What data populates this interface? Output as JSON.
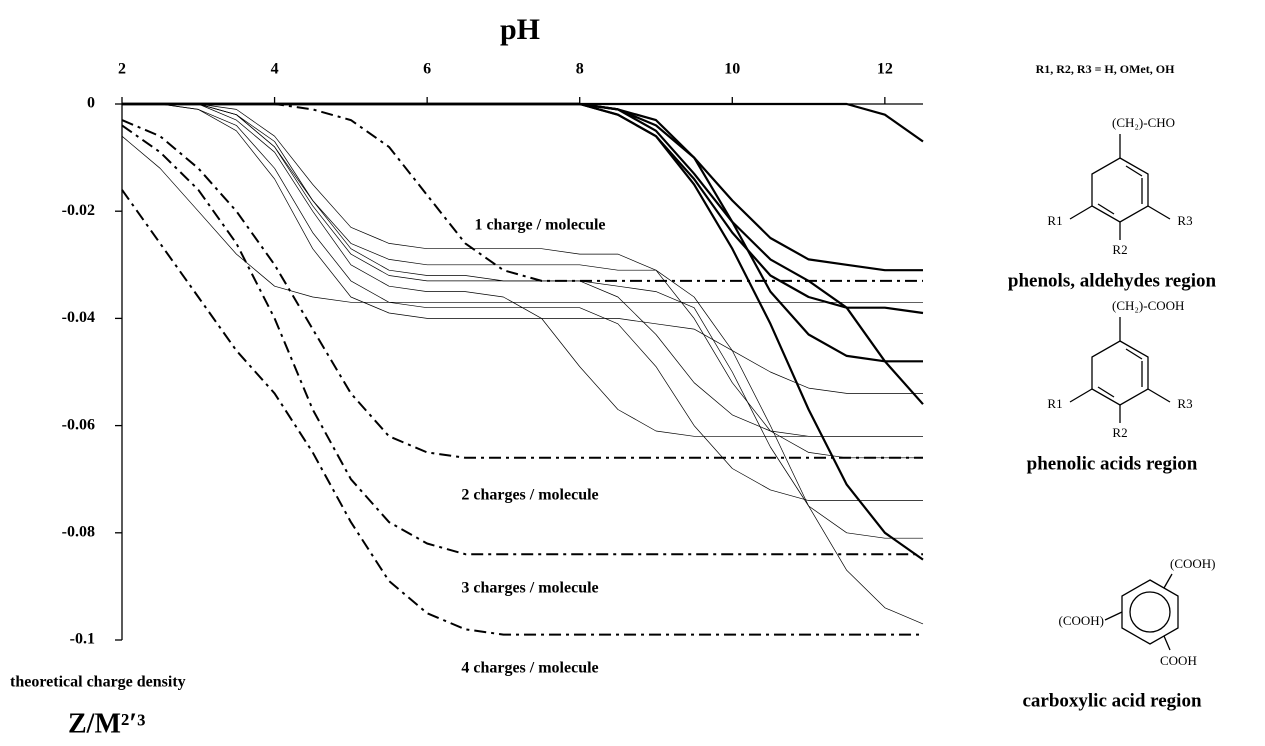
{
  "chart_data": {
    "type": "line",
    "title": "pH",
    "y_label": "theoretical charge density",
    "y_unit": "Z/M²′³",
    "annotations": [
      "1 charge / molecule",
      "2 charges / molecule",
      "3 charges / molecule",
      "4 charges / molecule"
    ],
    "substituent_note": "R1, R2, R3 = H, OMet, OH",
    "structures": [
      {
        "group": "(CH₂)-CHO",
        "labels": [
          "R1",
          "R2",
          "R3"
        ],
        "caption": "phenols, aldehydes region"
      },
      {
        "group": "(CH₂)-COOH",
        "labels": [
          "R1",
          "R2",
          "R3"
        ],
        "caption": "phenolic acids region"
      },
      {
        "labels": [
          "(COOH)",
          "(COOH)",
          "COOH"
        ],
        "caption": "carboxylic acid region"
      }
    ],
    "xlim": [
      2,
      12.5
    ],
    "xticks": [
      2,
      4,
      6,
      8,
      10,
      12
    ],
    "ylim": [
      -0.1,
      0
    ],
    "yticks": [
      0,
      -0.02,
      -0.04,
      -0.06,
      -0.08,
      -0.1
    ],
    "x": [
      2,
      2.5,
      3,
      3.5,
      4,
      4.5,
      5,
      5.5,
      6,
      6.5,
      7,
      7.5,
      8,
      8.5,
      9,
      9.5,
      10,
      10.5,
      11,
      11.5,
      12,
      12.5
    ],
    "series": [
      {
        "style": "thick",
        "color": "#000000",
        "values": [
          0,
          0,
          0,
          0,
          0,
          0,
          0,
          0,
          0,
          0,
          0,
          0,
          0,
          -0.001,
          -0.004,
          -0.01,
          -0.018,
          -0.025,
          -0.029,
          -0.03,
          -0.031,
          -0.031
        ]
      },
      {
        "style": "thick",
        "color": "#000000",
        "values": [
          0,
          0,
          0,
          0,
          0,
          0,
          0,
          0,
          0,
          0,
          0,
          0,
          0,
          -0.002,
          -0.006,
          -0.014,
          -0.024,
          -0.032,
          -0.036,
          -0.038,
          -0.038,
          -0.039
        ]
      },
      {
        "style": "thick",
        "color": "#000000",
        "values": [
          0,
          0,
          0,
          0,
          0,
          0,
          0,
          0,
          0,
          0,
          0,
          0,
          0,
          -0.001,
          -0.003,
          -0.01,
          -0.022,
          -0.035,
          -0.043,
          -0.047,
          -0.048,
          -0.048
        ]
      },
      {
        "style": "thick",
        "color": "#000000",
        "values": [
          0,
          0,
          0,
          0,
          0,
          0,
          0,
          0,
          0,
          0,
          0,
          0,
          0,
          -0.001,
          -0.005,
          -0.013,
          -0.022,
          -0.029,
          -0.033,
          -0.038,
          -0.048,
          -0.056
        ]
      },
      {
        "style": "thick",
        "color": "#000000",
        "values": [
          0,
          0,
          0,
          0,
          0,
          0,
          0,
          0,
          0,
          0,
          0,
          0,
          0,
          -0.002,
          -0.006,
          -0.015,
          -0.027,
          -0.041,
          -0.057,
          -0.071,
          -0.08,
          -0.085
        ]
      },
      {
        "style": "thick",
        "color": "#000000",
        "values": [
          0,
          0,
          0,
          0,
          0,
          0,
          0,
          0,
          0,
          0,
          0,
          0,
          0,
          0,
          0,
          0,
          0,
          0,
          0,
          0,
          -0.002,
          -0.007
        ]
      },
      {
        "style": "thin",
        "color": "#000000",
        "values": [
          -0.006,
          -0.012,
          -0.02,
          -0.028,
          -0.034,
          -0.036,
          -0.037,
          -0.037,
          -0.037,
          -0.037,
          -0.037,
          -0.037,
          -0.037,
          -0.037,
          -0.037,
          -0.037,
          -0.037,
          -0.037,
          -0.037,
          -0.037,
          -0.037,
          -0.037
        ]
      },
      {
        "style": "thin",
        "color": "#000000",
        "values": [
          0,
          0,
          0,
          -0.002,
          -0.007,
          -0.018,
          -0.027,
          -0.031,
          -0.032,
          -0.032,
          -0.033,
          -0.033,
          -0.033,
          -0.036,
          -0.043,
          -0.052,
          -0.058,
          -0.061,
          -0.062,
          -0.062,
          -0.062,
          -0.062
        ]
      },
      {
        "style": "thin",
        "color": "#000000",
        "values": [
          0,
          0,
          0,
          -0.003,
          -0.009,
          -0.02,
          -0.03,
          -0.034,
          -0.035,
          -0.035,
          -0.036,
          -0.04,
          -0.049,
          -0.057,
          -0.061,
          -0.062,
          -0.062,
          -0.062,
          -0.062,
          -0.062,
          -0.062,
          -0.062
        ]
      },
      {
        "style": "thin",
        "color": "#000000",
        "values": [
          0,
          0,
          0,
          -0.001,
          -0.006,
          -0.015,
          -0.023,
          -0.026,
          -0.027,
          -0.027,
          -0.027,
          -0.027,
          -0.028,
          -0.028,
          -0.031,
          -0.04,
          -0.052,
          -0.061,
          -0.065,
          -0.066,
          -0.066,
          -0.066
        ]
      },
      {
        "style": "thin",
        "color": "#000000",
        "values": [
          0,
          0,
          0,
          -0.002,
          -0.008,
          -0.018,
          -0.026,
          -0.029,
          -0.03,
          -0.03,
          -0.03,
          -0.03,
          -0.03,
          -0.031,
          -0.031,
          -0.036,
          -0.046,
          -0.06,
          -0.075,
          -0.087,
          -0.094,
          -0.097
        ]
      },
      {
        "style": "thin",
        "color": "#000000",
        "values": [
          0,
          0,
          0,
          -0.002,
          -0.008,
          -0.019,
          -0.028,
          -0.032,
          -0.033,
          -0.033,
          -0.033,
          -0.033,
          -0.033,
          -0.034,
          -0.035,
          -0.038,
          -0.05,
          -0.064,
          -0.075,
          -0.08,
          -0.081,
          -0.081
        ]
      },
      {
        "style": "thin",
        "color": "#000000",
        "values": [
          0,
          0,
          -0.001,
          -0.004,
          -0.012,
          -0.024,
          -0.033,
          -0.037,
          -0.038,
          -0.038,
          -0.038,
          -0.038,
          -0.038,
          -0.041,
          -0.049,
          -0.06,
          -0.068,
          -0.072,
          -0.074,
          -0.074,
          -0.074,
          -0.074
        ]
      },
      {
        "style": "thin",
        "color": "#000000",
        "values": [
          0,
          0,
          -0.001,
          -0.005,
          -0.014,
          -0.027,
          -0.036,
          -0.039,
          -0.04,
          -0.04,
          -0.04,
          -0.04,
          -0.04,
          -0.04,
          -0.041,
          -0.042,
          -0.046,
          -0.05,
          -0.053,
          -0.054,
          -0.054,
          -0.054
        ]
      },
      {
        "style": "dashdot",
        "color": "#000000",
        "values": [
          0,
          0,
          0,
          0,
          0,
          -0.001,
          -0.003,
          -0.008,
          -0.017,
          -0.026,
          -0.031,
          -0.033,
          -0.033,
          -0.033,
          -0.033,
          -0.033,
          -0.033,
          -0.033,
          -0.033,
          -0.033,
          -0.033,
          -0.033
        ]
      },
      {
        "style": "dashdot",
        "color": "#000000",
        "values": [
          -0.003,
          -0.006,
          -0.012,
          -0.02,
          -0.03,
          -0.042,
          -0.054,
          -0.062,
          -0.065,
          -0.066,
          -0.066,
          -0.066,
          -0.066,
          -0.066,
          -0.066,
          -0.066,
          -0.066,
          -0.066,
          -0.066,
          -0.066,
          -0.066,
          -0.066
        ]
      },
      {
        "style": "dashdot",
        "color": "#000000",
        "values": [
          -0.004,
          -0.009,
          -0.016,
          -0.026,
          -0.04,
          -0.057,
          -0.07,
          -0.078,
          -0.082,
          -0.084,
          -0.084,
          -0.084,
          -0.084,
          -0.084,
          -0.084,
          -0.084,
          -0.084,
          -0.084,
          -0.084,
          -0.084,
          -0.084,
          -0.084
        ]
      },
      {
        "style": "dashdot",
        "color": "#000000",
        "values": [
          -0.016,
          -0.026,
          -0.036,
          -0.046,
          -0.054,
          -0.065,
          -0.078,
          -0.089,
          -0.095,
          -0.098,
          -0.099,
          -0.099,
          -0.099,
          -0.099,
          -0.099,
          -0.099,
          -0.099,
          -0.099,
          -0.099,
          -0.099,
          -0.099,
          -0.099
        ]
      }
    ]
  }
}
